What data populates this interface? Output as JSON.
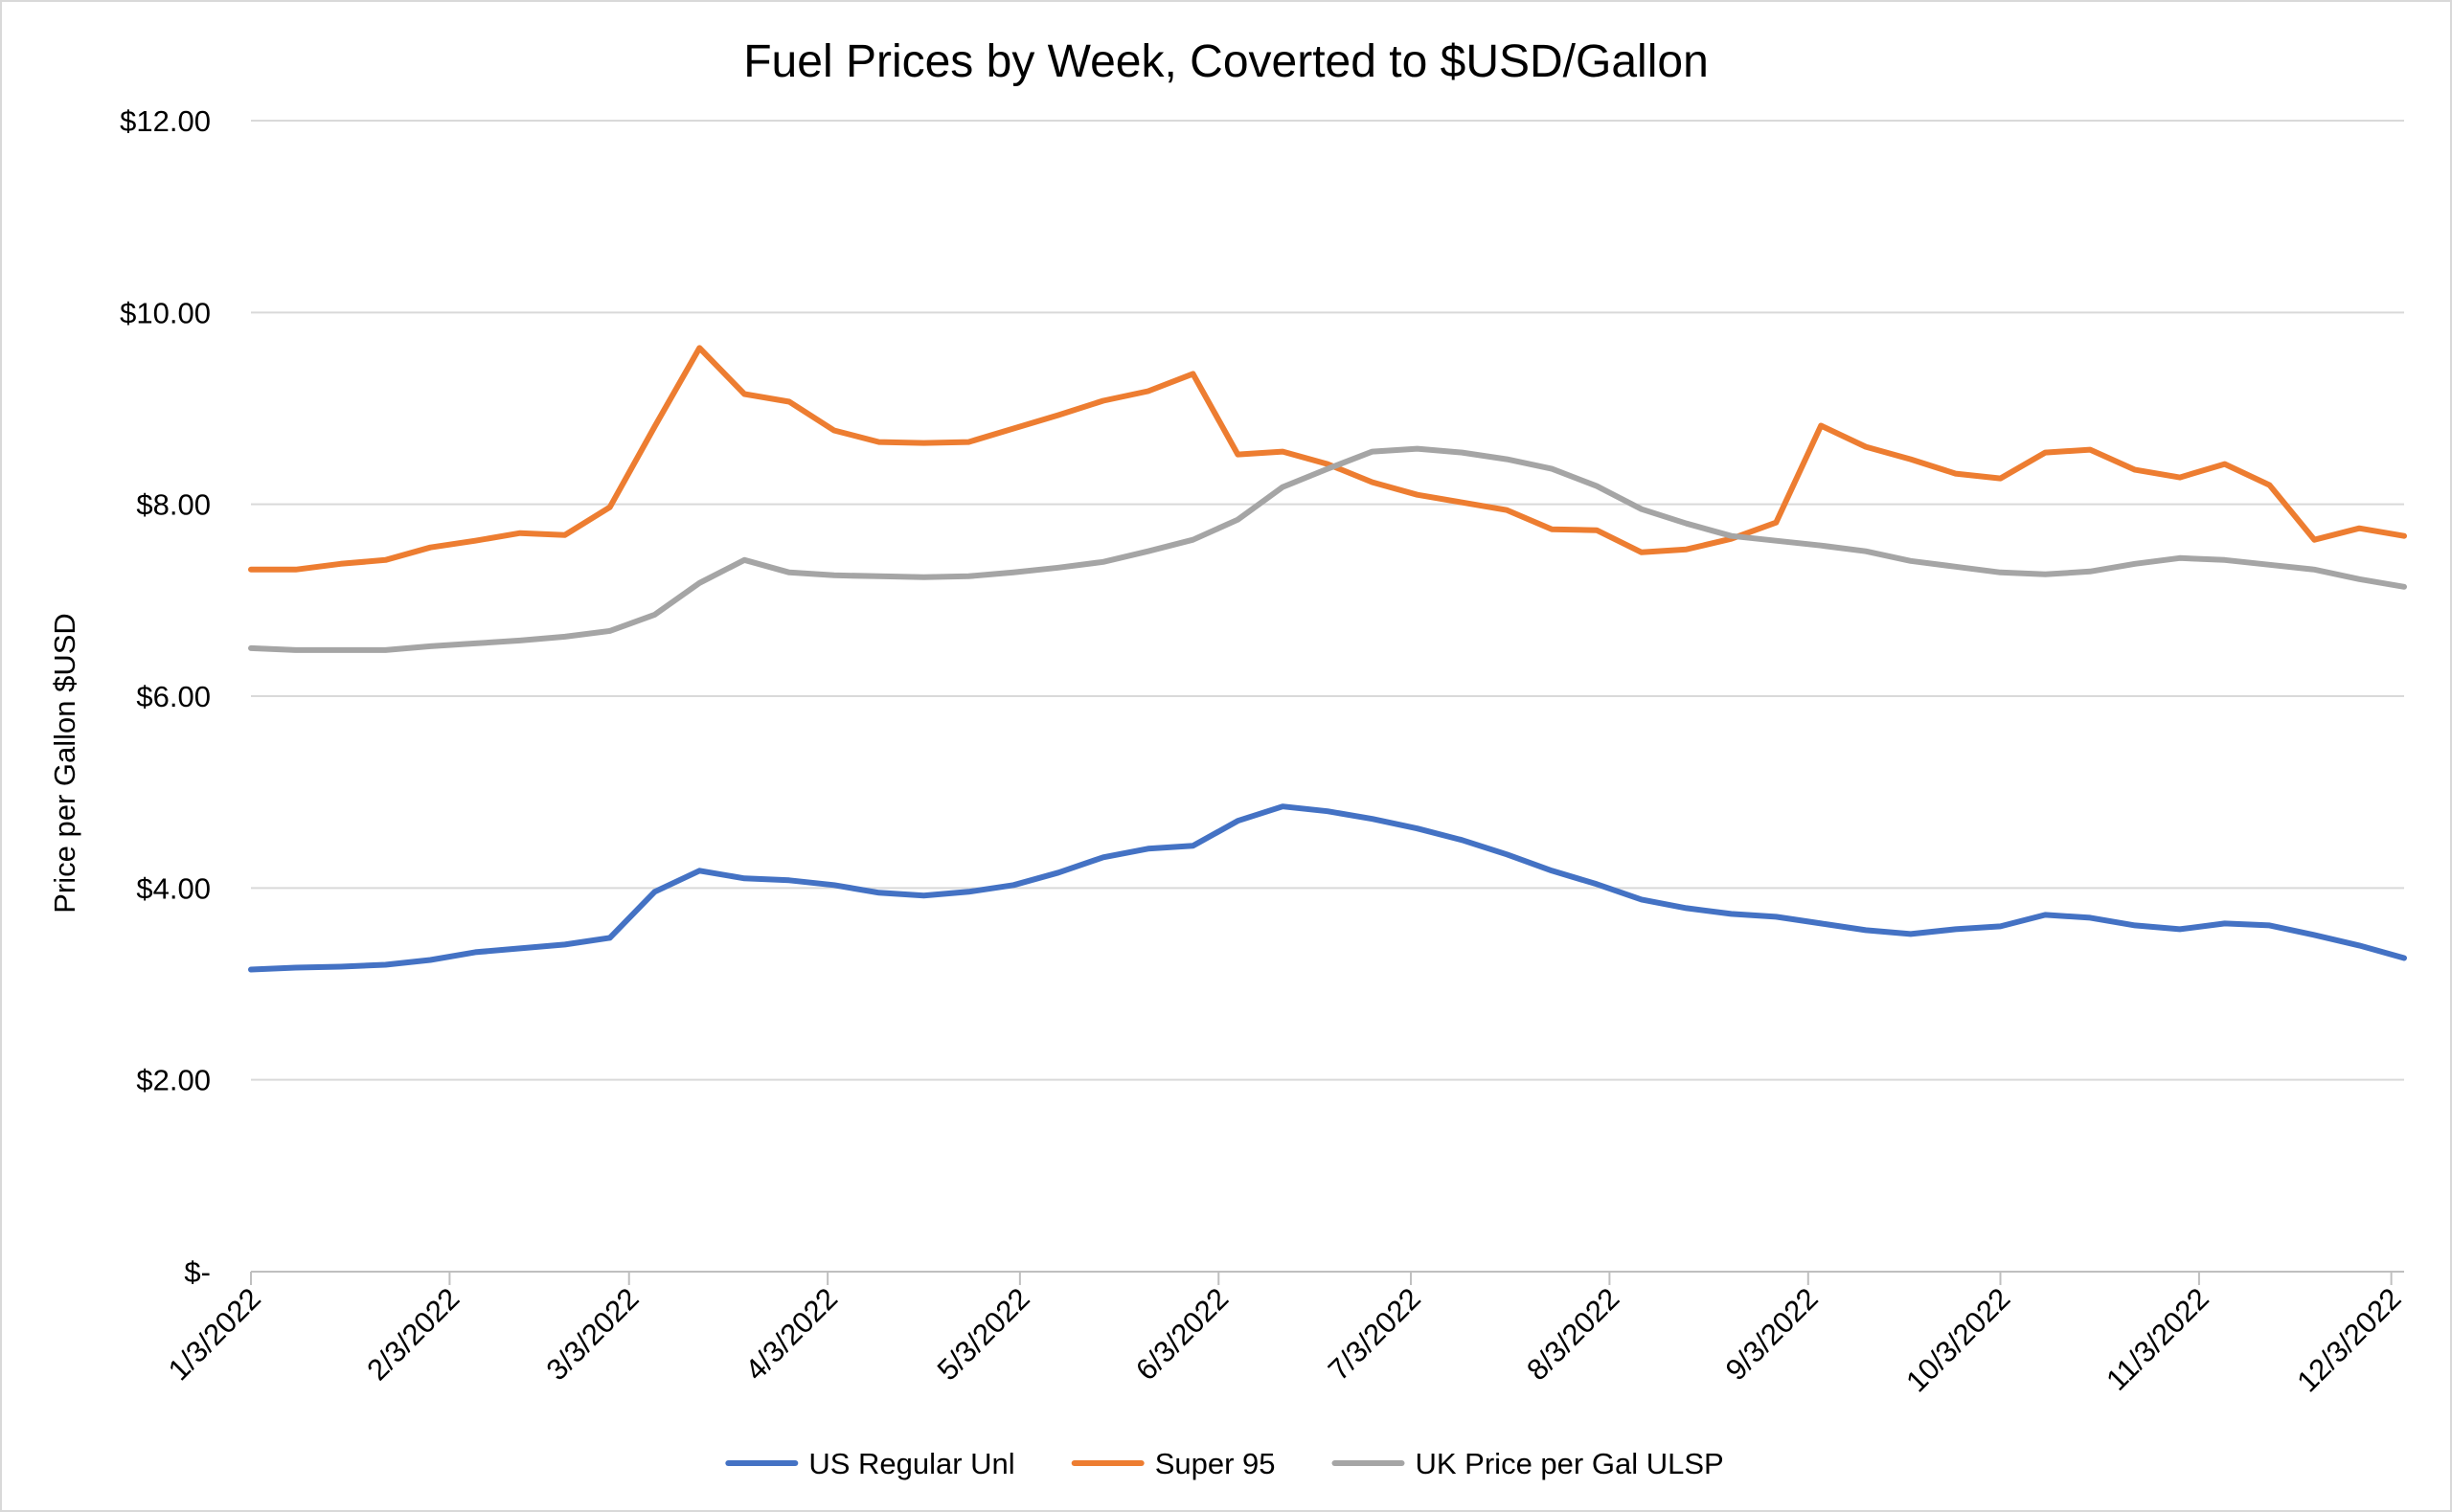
{
  "chart_data": {
    "type": "line",
    "title": "Fuel Prices by Week, Coverted to $USD/Gallon",
    "xlabel": "",
    "ylabel": "Price per Gallon $USD",
    "ylim": [
      0,
      12
    ],
    "y_ticks": [
      0,
      2,
      4,
      6,
      8,
      10,
      12
    ],
    "y_tick_labels": [
      "$-",
      "$2.00",
      "$4.00",
      "$6.00",
      "$8.00",
      "$10.00",
      "$12.00"
    ],
    "x_range": [
      "2022-01-03",
      "2022-12-05"
    ],
    "x_ticks": [
      "2022-01-03",
      "2022-02-03",
      "2022-03-03",
      "2022-04-03",
      "2022-05-03",
      "2022-06-03",
      "2022-07-03",
      "2022-08-03",
      "2022-09-03",
      "2022-10-03",
      "2022-11-03",
      "2022-12-03"
    ],
    "x_tick_labels": [
      "1/3/2022",
      "2/3/2022",
      "3/3/2022",
      "4/3/2022",
      "5/3/2022",
      "6/3/2022",
      "7/3/2022",
      "8/3/2022",
      "9/3/2022",
      "10/3/2022",
      "11/3/2022",
      "12/3/2022"
    ],
    "x": [
      "2022-01-03",
      "2022-01-10",
      "2022-01-17",
      "2022-01-24",
      "2022-01-31",
      "2022-02-07",
      "2022-02-14",
      "2022-02-21",
      "2022-02-28",
      "2022-03-07",
      "2022-03-14",
      "2022-03-21",
      "2022-03-28",
      "2022-04-04",
      "2022-04-11",
      "2022-04-18",
      "2022-04-25",
      "2022-05-02",
      "2022-05-09",
      "2022-05-16",
      "2022-05-23",
      "2022-05-30",
      "2022-06-06",
      "2022-06-13",
      "2022-06-20",
      "2022-06-27",
      "2022-07-04",
      "2022-07-11",
      "2022-07-18",
      "2022-07-25",
      "2022-08-01",
      "2022-08-08",
      "2022-08-15",
      "2022-08-22",
      "2022-08-29",
      "2022-09-05",
      "2022-09-12",
      "2022-09-19",
      "2022-09-26",
      "2022-10-03",
      "2022-10-10",
      "2022-10-17",
      "2022-10-24",
      "2022-10-31",
      "2022-11-07",
      "2022-11-14",
      "2022-11-21",
      "2022-11-28",
      "2022-12-05"
    ],
    "grid": true,
    "legend_position": "bottom",
    "series": [
      {
        "name": "US Regular Unl",
        "color": "#4472c4",
        "values": [
          3.15,
          3.17,
          3.18,
          3.2,
          3.25,
          3.33,
          3.37,
          3.41,
          3.48,
          3.96,
          4.18,
          4.1,
          4.08,
          4.03,
          3.95,
          3.92,
          3.96,
          4.03,
          4.16,
          4.32,
          4.41,
          4.44,
          4.7,
          4.85,
          4.8,
          4.72,
          4.62,
          4.5,
          4.35,
          4.18,
          4.04,
          3.88,
          3.79,
          3.73,
          3.7,
          3.63,
          3.56,
          3.52,
          3.57,
          3.6,
          3.72,
          3.69,
          3.61,
          3.57,
          3.63,
          3.61,
          3.51,
          3.4,
          3.27
        ]
      },
      {
        "name": "Super 95",
        "color": "#ed7d31",
        "values": [
          7.32,
          7.32,
          7.38,
          7.42,
          7.55,
          7.62,
          7.7,
          7.68,
          7.97,
          8.81,
          9.63,
          9.15,
          9.07,
          8.77,
          8.65,
          8.64,
          8.65,
          8.79,
          8.93,
          9.08,
          9.18,
          9.36,
          8.52,
          8.55,
          8.42,
          8.23,
          8.1,
          8.02,
          7.94,
          7.74,
          7.73,
          7.5,
          7.53,
          7.64,
          7.81,
          8.82,
          8.6,
          8.47,
          8.32,
          8.27,
          8.54,
          8.57,
          8.36,
          8.28,
          8.42,
          8.2,
          7.63,
          7.75,
          7.67
        ]
      },
      {
        "name": "UK Price per Gal ULSP",
        "color": "#a5a5a5",
        "values": [
          6.5,
          6.48,
          6.48,
          6.48,
          6.52,
          6.55,
          6.58,
          6.62,
          6.68,
          6.85,
          7.18,
          7.42,
          7.29,
          7.26,
          7.25,
          7.24,
          7.25,
          7.29,
          7.34,
          7.4,
          7.51,
          7.63,
          7.84,
          8.18,
          8.37,
          8.55,
          8.58,
          8.54,
          8.47,
          8.37,
          8.19,
          7.95,
          7.8,
          7.67,
          7.62,
          7.57,
          7.51,
          7.41,
          7.35,
          7.29,
          7.27,
          7.3,
          7.38,
          7.44,
          7.42,
          7.37,
          7.32,
          7.22,
          7.14
        ]
      }
    ]
  }
}
